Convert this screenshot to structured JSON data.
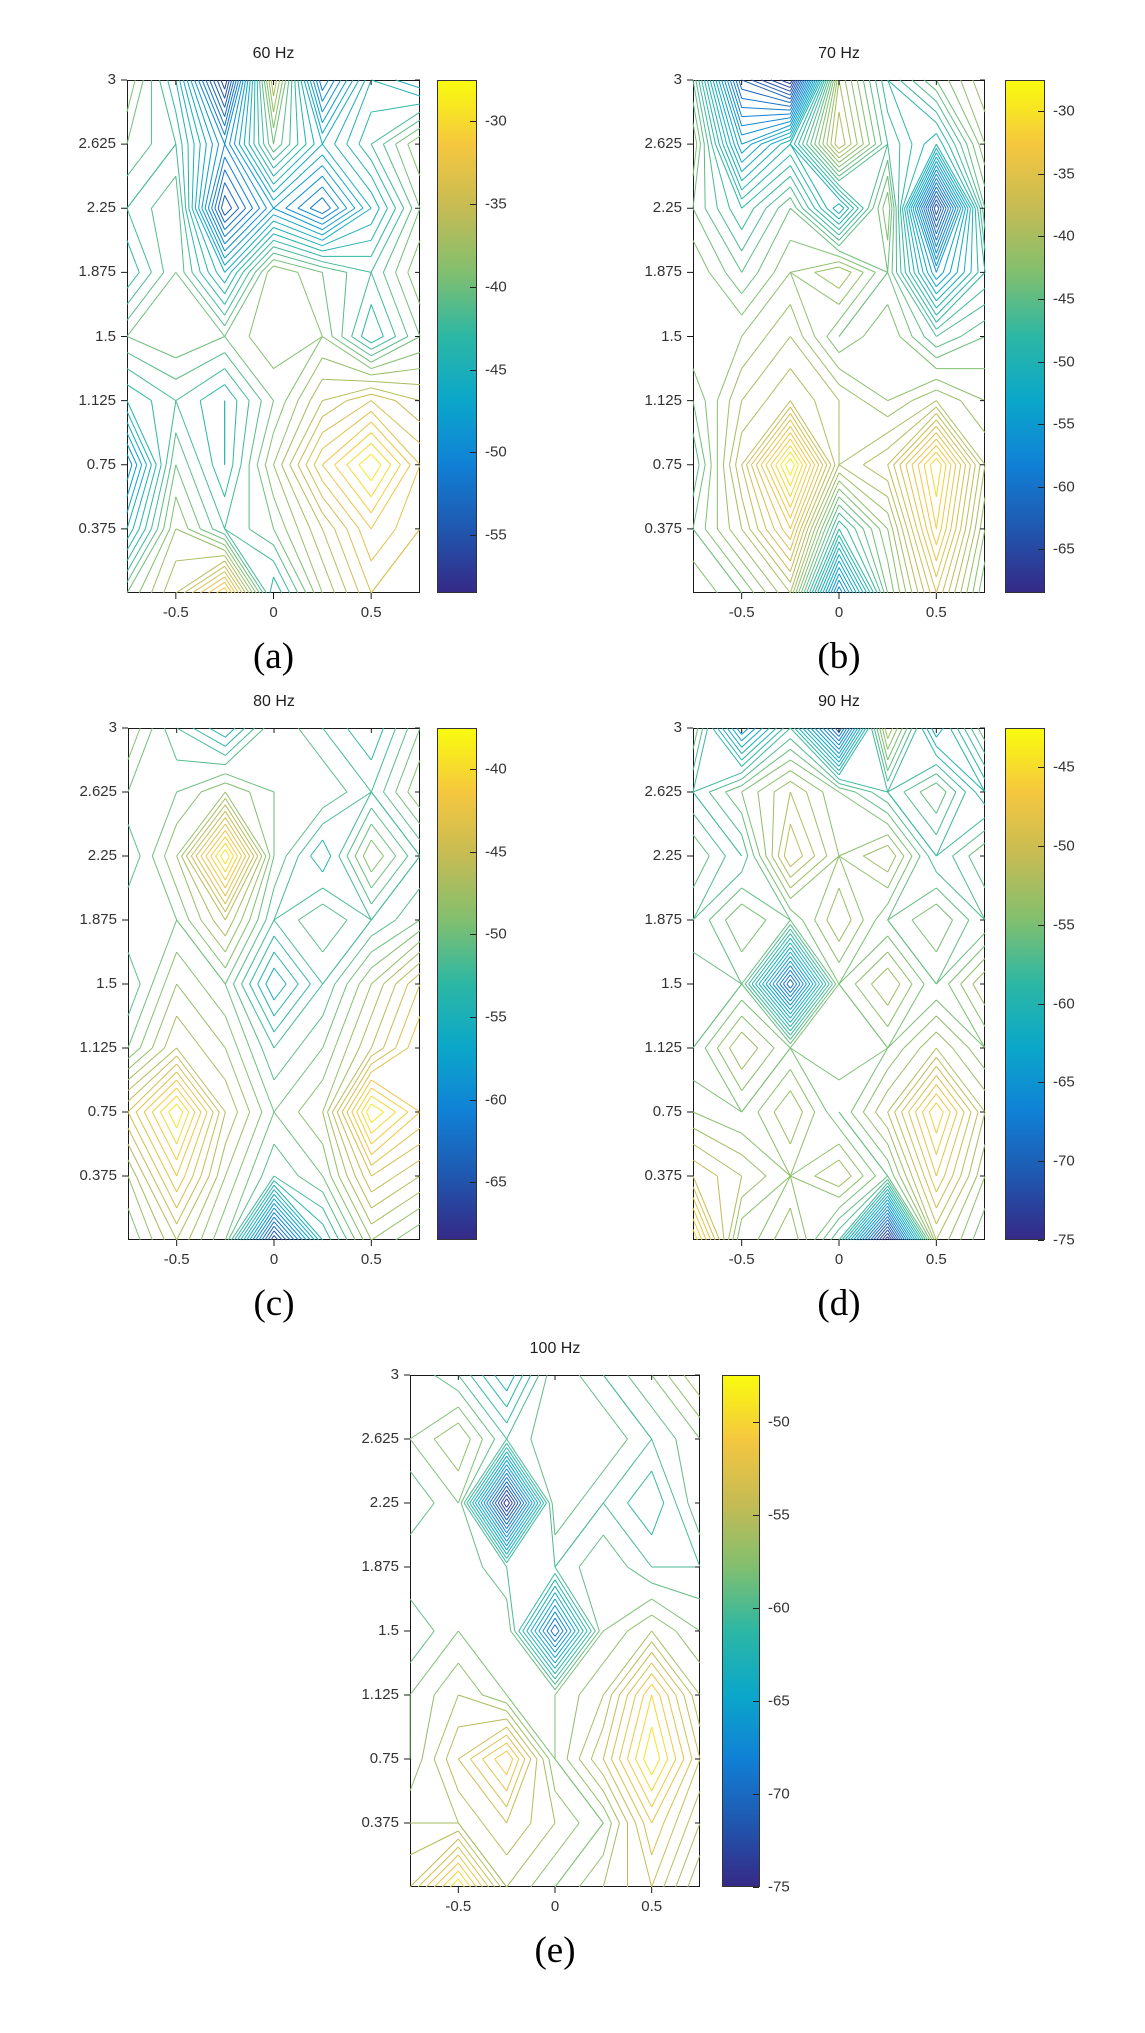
{
  "figure": {
    "description": "Five contour subplots of measured response (dB) versus position, one per excitation frequency",
    "captions": [
      "(a)",
      "(b)",
      "(c)",
      "(d)",
      "(e)"
    ]
  },
  "colormap": {
    "name": "parula",
    "stops": [
      {
        "t": 0.0,
        "c": "#352a87"
      },
      {
        "t": 0.125,
        "c": "#2058b0"
      },
      {
        "t": 0.25,
        "c": "#1081d6"
      },
      {
        "t": 0.375,
        "c": "#0ba7ca"
      },
      {
        "t": 0.5,
        "c": "#2cb7a4"
      },
      {
        "t": 0.625,
        "c": "#81bf6f"
      },
      {
        "t": 0.75,
        "c": "#c5bb54"
      },
      {
        "t": 0.875,
        "c": "#f5c73f"
      },
      {
        "t": 1.0,
        "c": "#f9fb0e"
      }
    ]
  },
  "chart_data": [
    {
      "id": "a",
      "type": "contour",
      "title": "60 Hz",
      "caption": "(a)",
      "x": [
        -0.75,
        -0.5,
        -0.25,
        0,
        0.25,
        0.5,
        0.75
      ],
      "y": [
        3,
        2.625,
        2.25,
        1.875,
        1.5,
        1.125,
        0.75,
        0.375,
        0
      ],
      "z": [
        [
          -38,
          -44,
          -57,
          -36,
          -52,
          -44,
          -46
        ],
        [
          -40,
          -42,
          -50,
          -40,
          -46,
          -42,
          -38
        ],
        [
          -42,
          -40,
          -55,
          -48,
          -52,
          -46,
          -40
        ],
        [
          -44,
          -40,
          -46,
          -38,
          -40,
          -42,
          -38
        ],
        [
          -40,
          -39,
          -40,
          -38,
          -39,
          -44,
          -40
        ],
        [
          -44,
          -42,
          -44,
          -40,
          -36,
          -34,
          -36
        ],
        [
          -50,
          -40,
          -44,
          -38,
          -32,
          -28,
          -33
        ],
        [
          -46,
          -38,
          -42,
          -40,
          -36,
          -32,
          -34
        ],
        [
          -40,
          -36,
          -30,
          -44,
          -38,
          -34,
          -33
        ]
      ],
      "xlim": [
        -0.75,
        0.75
      ],
      "ylim": [
        0,
        3
      ],
      "level_step": 1,
      "xticks": [
        -0.5,
        0,
        0.5
      ],
      "xtick_labels": [
        "-0.5",
        "0",
        "0.5"
      ],
      "yticks": [
        3,
        2.625,
        2.25,
        1.875,
        1.5,
        1.125,
        0.75,
        0.375
      ],
      "ytick_labels": [
        "3",
        "2.625",
        "2.25",
        "1.875",
        "1.5",
        "1.125",
        "0.75",
        "0.375"
      ],
      "colorbar": {
        "cmin": -58.5,
        "cmax": -27.5,
        "ticks": [
          -30,
          -35,
          -40,
          -45,
          -50,
          -55
        ],
        "tick_labels": [
          "-30",
          "-35",
          "-40",
          "-45",
          "-50",
          "-55"
        ]
      }
    },
    {
      "id": "b",
      "type": "contour",
      "title": "70 Hz",
      "caption": "(b)",
      "x": [
        -0.75,
        -0.5,
        -0.25,
        0,
        0.25,
        0.5,
        0.75
      ],
      "y": [
        3,
        2.625,
        2.25,
        1.875,
        1.5,
        1.125,
        0.75,
        0.375,
        0
      ],
      "z": [
        [
          -45,
          -62,
          -67,
          -40,
          -48,
          -44,
          -40
        ],
        [
          -42,
          -55,
          -50,
          -38,
          -46,
          -50,
          -42
        ],
        [
          -44,
          -48,
          -44,
          -52,
          -42,
          -65,
          -45
        ],
        [
          -42,
          -45,
          -42,
          -40,
          -44,
          -55,
          -48
        ],
        [
          -42,
          -42,
          -40,
          -44,
          -42,
          -46,
          -44
        ],
        [
          -44,
          -40,
          -38,
          -40,
          -42,
          -40,
          -42
        ],
        [
          -46,
          -38,
          -28,
          -40,
          -38,
          -30,
          -40
        ],
        [
          -44,
          -40,
          -34,
          -48,
          -42,
          -32,
          -42
        ],
        [
          -42,
          -44,
          -40,
          -58,
          -44,
          -36,
          -44
        ]
      ],
      "xlim": [
        -0.75,
        0.75
      ],
      "ylim": [
        0,
        3
      ],
      "level_step": 1,
      "xticks": [
        -0.5,
        0,
        0.5
      ],
      "xtick_labels": [
        "-0.5",
        "0",
        "0.5"
      ],
      "yticks": [
        3,
        2.625,
        2.25,
        1.875,
        1.5,
        1.125,
        0.75,
        0.375
      ],
      "ytick_labels": [
        "3",
        "2.625",
        "2.25",
        "1.875",
        "1.5",
        "1.125",
        "0.75",
        "0.375"
      ],
      "colorbar": {
        "cmin": -68.5,
        "cmax": -27.5,
        "ticks": [
          -30,
          -35,
          -40,
          -45,
          -50,
          -55,
          -60,
          -65
        ],
        "tick_labels": [
          "-30",
          "-35",
          "-40",
          "-45",
          "-50",
          "-55",
          "-60",
          "-65"
        ]
      }
    },
    {
      "id": "c",
      "type": "contour",
      "title": "80 Hz",
      "caption": "(c)",
      "x": [
        -0.75,
        -0.5,
        -0.25,
        0,
        0.25,
        0.5,
        0.75
      ],
      "y": [
        3,
        2.625,
        2.25,
        1.875,
        1.5,
        1.125,
        0.75,
        0.375,
        0
      ],
      "z": [
        [
          -48,
          -52,
          -55,
          -50,
          -52,
          -54,
          -50
        ],
        [
          -50,
          -50,
          -48,
          -50,
          -50,
          -52,
          -48
        ],
        [
          -52,
          -48,
          -38,
          -50,
          -54,
          -48,
          -52
        ],
        [
          -50,
          -50,
          -46,
          -52,
          -50,
          -52,
          -50
        ],
        [
          -52,
          -48,
          -50,
          -56,
          -52,
          -48,
          -44
        ],
        [
          -50,
          -46,
          -48,
          -52,
          -50,
          -46,
          -42
        ],
        [
          -44,
          -38,
          -46,
          -50,
          -48,
          -38,
          -42
        ],
        [
          -48,
          -42,
          -48,
          -52,
          -50,
          -44,
          -46
        ],
        [
          -50,
          -46,
          -50,
          -66,
          -54,
          -48,
          -50
        ]
      ],
      "xlim": [
        -0.75,
        0.75
      ],
      "ylim": [
        0,
        3
      ],
      "level_step": 1,
      "xticks": [
        -0.5,
        0,
        0.5
      ],
      "xtick_labels": [
        "-0.5",
        "0",
        "0.5"
      ],
      "yticks": [
        3,
        2.625,
        2.25,
        1.875,
        1.5,
        1.125,
        0.75,
        0.375
      ],
      "ytick_labels": [
        "3",
        "2.625",
        "2.25",
        "1.875",
        "1.5",
        "1.125",
        "0.75",
        "0.375"
      ],
      "colorbar": {
        "cmin": -68.5,
        "cmax": -37.5,
        "ticks": [
          -40,
          -45,
          -50,
          -55,
          -60,
          -65
        ],
        "tick_labels": [
          "-40",
          "-45",
          "-50",
          "-55",
          "-60",
          "-65"
        ]
      }
    },
    {
      "id": "d",
      "type": "contour",
      "title": "90 Hz",
      "caption": "(d)",
      "x": [
        -0.75,
        -0.5,
        -0.25,
        0,
        0.25,
        0.5,
        0.75
      ],
      "y": [
        3,
        2.625,
        2.25,
        1.875,
        1.5,
        1.125,
        0.75,
        0.375,
        0
      ],
      "z": [
        [
          -55,
          -65,
          -58,
          -70,
          -52,
          -62,
          -55
        ],
        [
          -58,
          -55,
          -52,
          -55,
          -58,
          -55,
          -60
        ],
        [
          -55,
          -58,
          -50,
          -54,
          -52,
          -58,
          -55
        ],
        [
          -57,
          -54,
          -56,
          -52,
          -56,
          -54,
          -57
        ],
        [
          -55,
          -56,
          -70,
          -55,
          -52,
          -56,
          -52
        ],
        [
          -56,
          -52,
          -55,
          -54,
          -55,
          -52,
          -55
        ],
        [
          -54,
          -55,
          -52,
          -56,
          -52,
          -45,
          -52
        ],
        [
          -50,
          -52,
          -54,
          -52,
          -56,
          -48,
          -54
        ],
        [
          -44,
          -55,
          -52,
          -58,
          -75,
          -52,
          -56
        ]
      ],
      "xlim": [
        -0.75,
        0.75
      ],
      "ylim": [
        0,
        3
      ],
      "level_step": 1,
      "xticks": [
        -0.5,
        0,
        0.5
      ],
      "xtick_labels": [
        "-0.5",
        "0",
        "0.5"
      ],
      "yticks": [
        3,
        2.625,
        2.25,
        1.875,
        1.5,
        1.125,
        0.75,
        0.375
      ],
      "ytick_labels": [
        "3",
        "2.625",
        "2.25",
        "1.875",
        "1.5",
        "1.125",
        "0.75",
        "0.375"
      ],
      "colorbar": {
        "cmin": -75,
        "cmax": -42.5,
        "ticks": [
          -45,
          -50,
          -55,
          -60,
          -65,
          -70,
          -75
        ],
        "tick_labels": [
          "-45",
          "-50",
          "-55",
          "-60",
          "-65",
          "-70",
          "-75"
        ]
      }
    },
    {
      "id": "e",
      "type": "contour",
      "title": "100 Hz",
      "caption": "(e)",
      "x": [
        -0.75,
        -0.5,
        -0.25,
        0,
        0.25,
        0.5,
        0.75
      ],
      "y": [
        3,
        2.625,
        2.25,
        1.875,
        1.5,
        1.125,
        0.75,
        0.375,
        0
      ],
      "z": [
        [
          -58,
          -60,
          -64,
          -58,
          -60,
          -58,
          -55
        ],
        [
          -58,
          -56,
          -60,
          -58,
          -58,
          -60,
          -58
        ],
        [
          -60,
          -58,
          -75,
          -58,
          -60,
          -62,
          -58
        ],
        [
          -58,
          -58,
          -60,
          -60,
          -58,
          -60,
          -60
        ],
        [
          -60,
          -58,
          -58,
          -70,
          -58,
          -56,
          -58
        ],
        [
          -58,
          -56,
          -58,
          -58,
          -56,
          -50,
          -56
        ],
        [
          -58,
          -54,
          -50,
          -58,
          -54,
          -48,
          -54
        ],
        [
          -56,
          -56,
          -54,
          -56,
          -58,
          -52,
          -56
        ],
        [
          -54,
          -48,
          -56,
          -58,
          -56,
          -54,
          -58
        ]
      ],
      "xlim": [
        -0.75,
        0.75
      ],
      "ylim": [
        0,
        3
      ],
      "level_step": 1,
      "xticks": [
        -0.5,
        0,
        0.5
      ],
      "xtick_labels": [
        "-0.5",
        "0",
        "0.5"
      ],
      "yticks": [
        3,
        2.625,
        2.25,
        1.875,
        1.5,
        1.125,
        0.75,
        0.375
      ],
      "ytick_labels": [
        "3",
        "2.625",
        "2.25",
        "1.875",
        "1.5",
        "1.125",
        "0.75",
        "0.375"
      ],
      "colorbar": {
        "cmin": -75,
        "cmax": -47.5,
        "ticks": [
          -50,
          -55,
          -60,
          -65,
          -70,
          -75
        ],
        "tick_labels": [
          "-50",
          "-55",
          "-60",
          "-65",
          "-70",
          "-75"
        ]
      }
    }
  ]
}
